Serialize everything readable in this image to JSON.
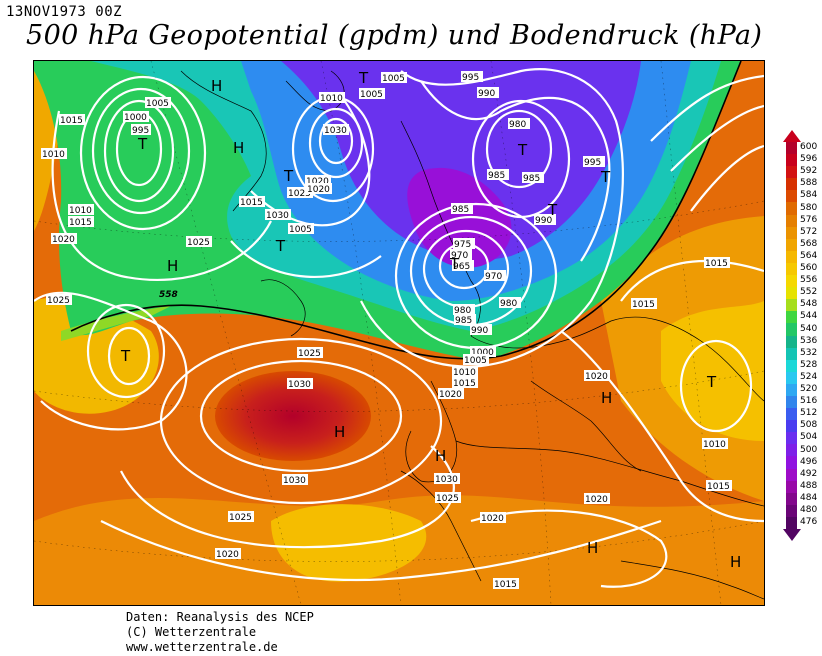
{
  "header": {
    "datestamp": "13NOV1973 00Z",
    "title": "500 hPa Geopotential (gpdm) und Bodendruck (hPa)"
  },
  "footer": {
    "line1": "Daten: Reanalysis des NCEP",
    "line2": "(C) Wetterzentrale",
    "line3": "www.wetterzentrale.de"
  },
  "legend": {
    "levels": [
      "600",
      "596",
      "592",
      "588",
      "584",
      "580",
      "576",
      "572",
      "568",
      "564",
      "560",
      "556",
      "552",
      "548",
      "544",
      "540",
      "536",
      "532",
      "528",
      "524",
      "520",
      "516",
      "512",
      "508",
      "504",
      "500",
      "496",
      "492",
      "488",
      "484",
      "480",
      "476"
    ],
    "colors": [
      "#b3002a",
      "#c8001c",
      "#d21212",
      "#d63000",
      "#dc4a00",
      "#e06a00",
      "#e57f00",
      "#eb9300",
      "#f0a500",
      "#f5b800",
      "#f6c800",
      "#f5d800",
      "#e6e200",
      "#a6de1c",
      "#3fd63f",
      "#22c766",
      "#15b48a",
      "#14c4b4",
      "#1bd8d8",
      "#29c8f0",
      "#2ea8f2",
      "#3185ec",
      "#3a5df0",
      "#4a3cf0",
      "#6a2ef0",
      "#7e20e8",
      "#9012e0",
      "#9e0cc8",
      "#9808a8",
      "#82068c",
      "#6a0477",
      "#520462"
    ],
    "arrow_top_color": "#c8001c",
    "arrow_bottom_color": "#520462"
  },
  "map": {
    "isobar_labels": [
      "1005",
      "1000",
      "995",
      "1015",
      "1010",
      "1010",
      "1015",
      "1020",
      "1025",
      "1025",
      "558",
      "1010",
      "1005",
      "1030",
      "1020",
      "1025",
      "1015",
      "1030",
      "1020",
      "1005",
      "1005",
      "995",
      "990",
      "980",
      "985",
      "985",
      "995",
      "990",
      "985",
      "975",
      "970",
      "965",
      "970",
      "980",
      "985",
      "990",
      "1000",
      "980",
      "1005",
      "1010",
      "1015",
      "1020",
      "1025",
      "1030",
      "1030",
      "1025",
      "1020",
      "1020",
      "1015",
      "1020",
      "1015",
      "1010",
      "1015",
      "1020",
      "1015",
      "1030",
      "1025"
    ],
    "systems": [
      "H",
      "H",
      "T",
      "H",
      "T",
      "T",
      "T",
      "T",
      "T",
      "T",
      "T",
      "T",
      "H",
      "H",
      "H",
      "T",
      "H",
      "H",
      "H",
      "H"
    ]
  }
}
